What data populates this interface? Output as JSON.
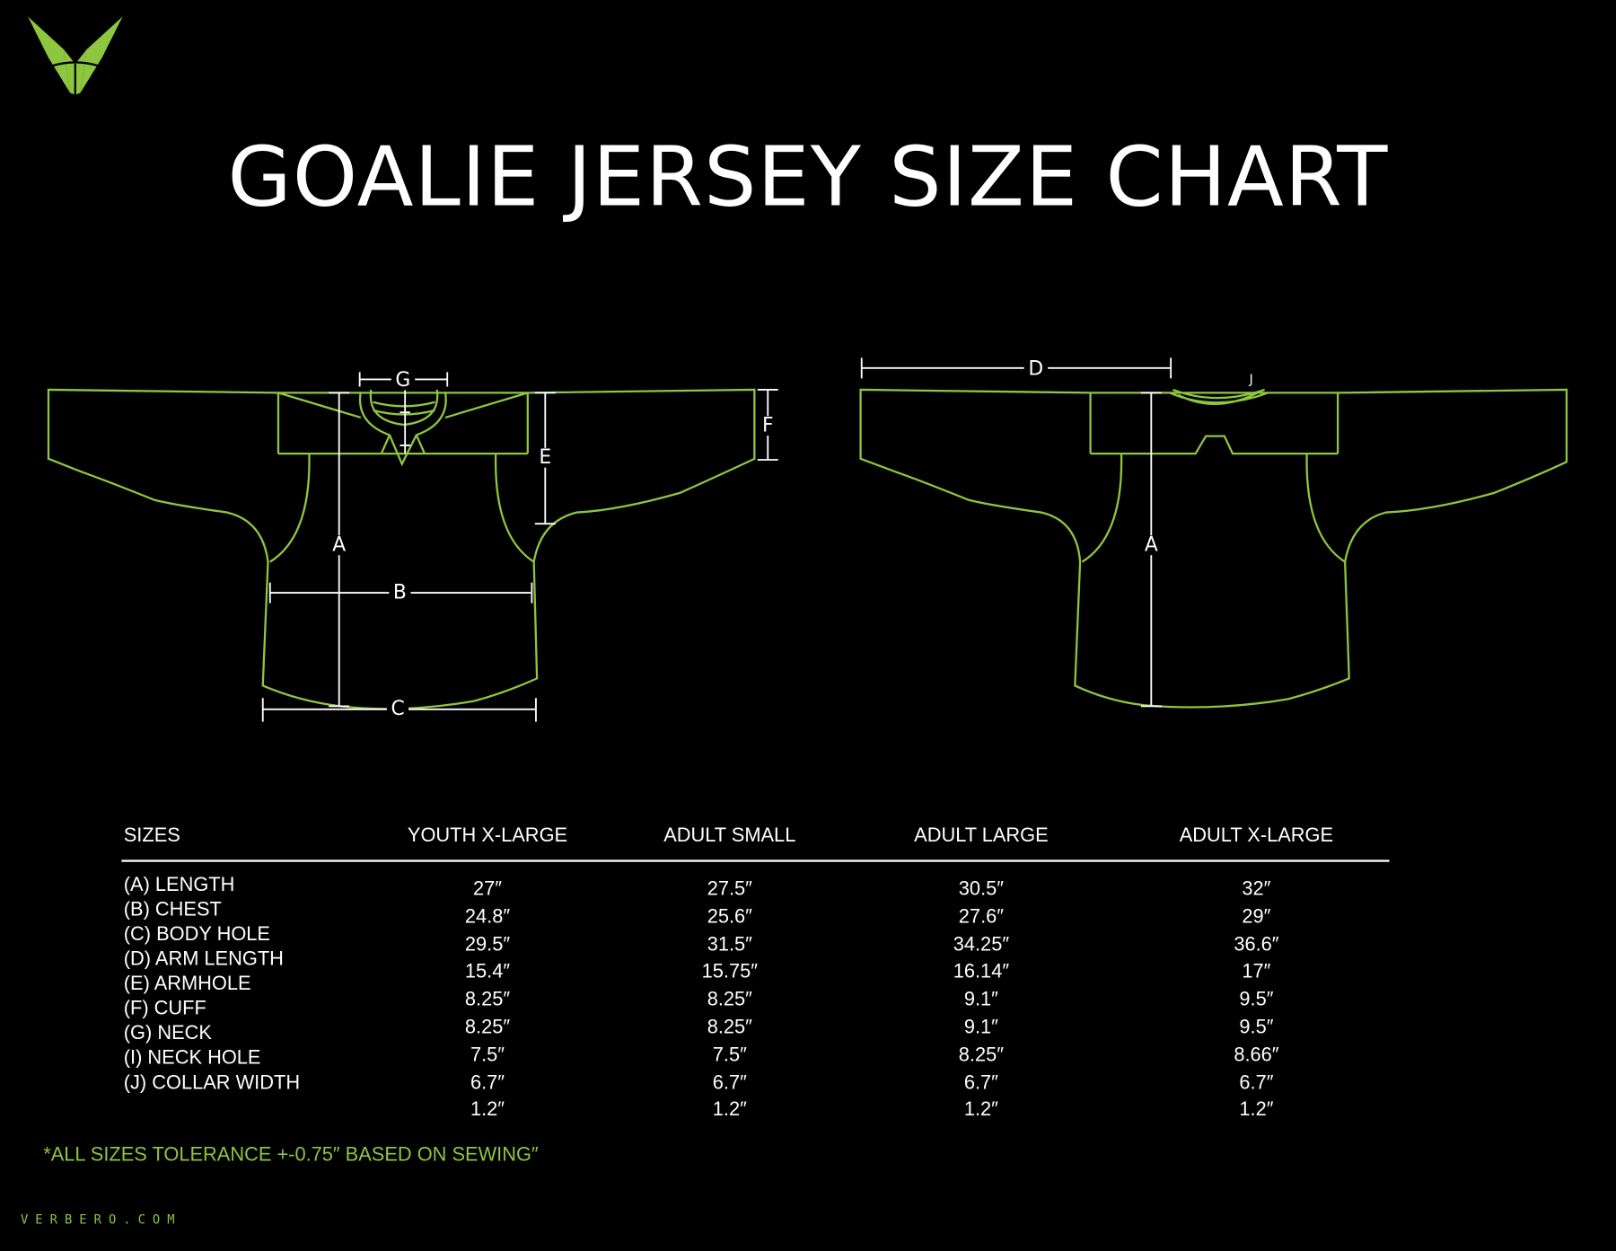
{
  "brand": {
    "logo": "verbero-v-logo",
    "website": "VERBERO.COM",
    "color": "#8dc63f"
  },
  "title": "GOALIE JERSEY SIZE CHART",
  "diagram_labels": {
    "front": {
      "g": "G",
      "a": "A",
      "b": "B",
      "c": "C",
      "e": "E",
      "f": "F"
    },
    "back": {
      "d": "D",
      "a": "A",
      "j": "J"
    }
  },
  "table": {
    "header": "SIZES",
    "columns": [
      "YOUTH X-LARGE",
      "ADULT SMALL",
      "ADULT LARGE",
      "ADULT X-LARGE"
    ],
    "rows": [
      {
        "label": "(A) LENGTH",
        "values": [
          "27″",
          "27.5″",
          "30.5″",
          "32″"
        ]
      },
      {
        "label": "(B) CHEST",
        "values": [
          "24.8″",
          "25.6″",
          "27.6″",
          "29″"
        ]
      },
      {
        "label": "(C) BODY HOLE",
        "values": [
          "29.5″",
          "31.5″",
          "34.25″",
          "36.6″"
        ]
      },
      {
        "label": "(D) ARM LENGTH",
        "values": [
          "15.4″",
          "15.75″",
          "16.14″",
          "17″"
        ]
      },
      {
        "label": "(E) ARMHOLE",
        "values": [
          "8.25″",
          "8.25″",
          "9.1″",
          "9.5″"
        ]
      },
      {
        "label": "(F) CUFF",
        "values": [
          "8.25″",
          "8.25″",
          "9.1″",
          "9.5″"
        ]
      },
      {
        "label": "(G) NECK",
        "values": [
          "7.5″",
          "7.5″",
          "8.25″",
          "8.66″"
        ]
      },
      {
        "label": "(I) NECK HOLE",
        "values": [
          "6.7″",
          "6.7″",
          "6.7″",
          "6.7″"
        ]
      },
      {
        "label": "(J) COLLAR WIDTH",
        "values": [
          "1.2″",
          "1.2″",
          "1.2″",
          "1.2″"
        ]
      }
    ]
  },
  "note": "*ALL SIZES TOLERANCE +-0.75″ BASED ON SEWING″"
}
